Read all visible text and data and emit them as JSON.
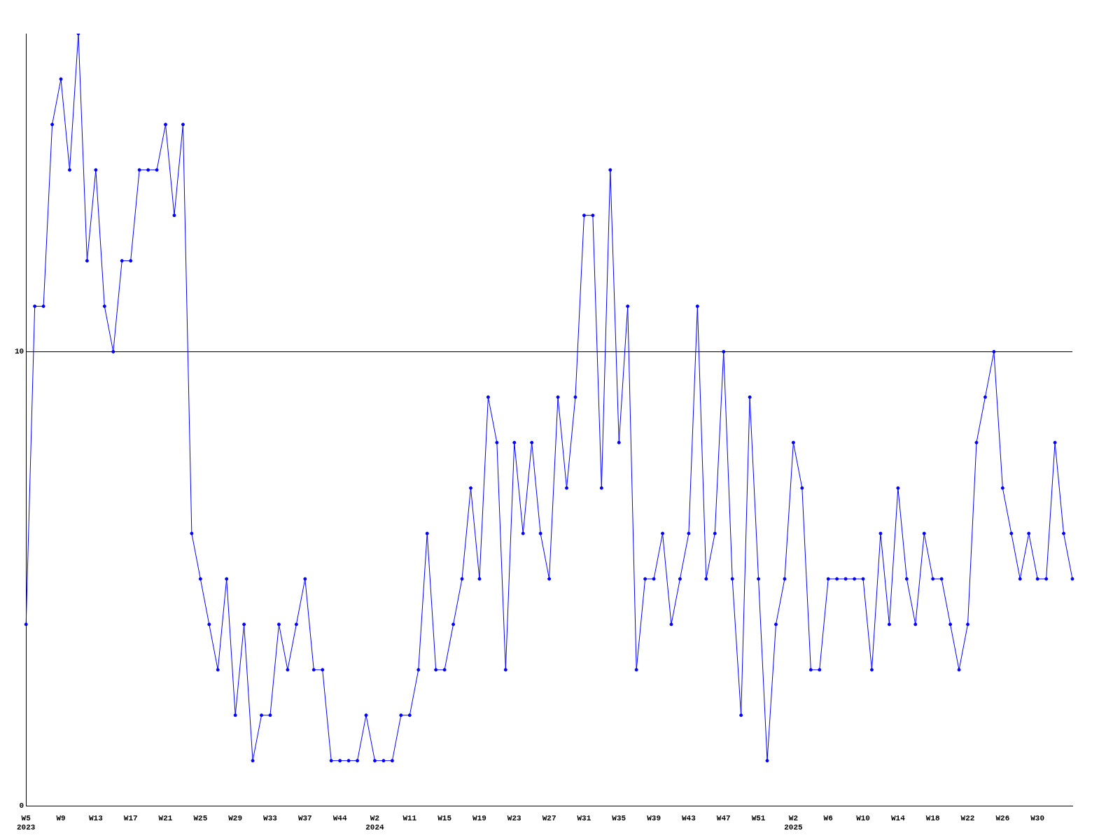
{
  "chart_data": {
    "type": "line",
    "categories": [
      "W5\n2023",
      null,
      null,
      null,
      "W9",
      null,
      null,
      null,
      "W13",
      null,
      null,
      null,
      "W17",
      null,
      null,
      null,
      "W21",
      null,
      null,
      null,
      "W25",
      null,
      null,
      null,
      "W29",
      null,
      null,
      null,
      "W33",
      null,
      null,
      null,
      "W37",
      null,
      null,
      null,
      "W44",
      null,
      null,
      null,
      "W2\n2024",
      null,
      null,
      null,
      "W11",
      null,
      null,
      null,
      "W15",
      null,
      null,
      null,
      "W19",
      null,
      null,
      null,
      "W23",
      null,
      null,
      null,
      "W27",
      null,
      null,
      null,
      "W31",
      null,
      null,
      null,
      "W35",
      null,
      null,
      null,
      "W39",
      null,
      null,
      null,
      "W43",
      null,
      null,
      null,
      "W47",
      null,
      null,
      null,
      "W51",
      null,
      null,
      null,
      "W2\n2025",
      null,
      null,
      null,
      "W6",
      null,
      null,
      null,
      "W10",
      null,
      null,
      null,
      "W14",
      null,
      null,
      null,
      "W18",
      null,
      null,
      null,
      "W22",
      null,
      null,
      null,
      "W26",
      null,
      null,
      null,
      "W30",
      null,
      null,
      null,
      null
    ],
    "series": [
      {
        "color": "#0000ff",
        "values": [
          4,
          11,
          11,
          15,
          16,
          14,
          17,
          12,
          14,
          11,
          10,
          12,
          12,
          14,
          14,
          14,
          15,
          13,
          15,
          6,
          5,
          4,
          3,
          5,
          2,
          4,
          1,
          2,
          2,
          4,
          3,
          4,
          5,
          3,
          3,
          1,
          1,
          1,
          1,
          2,
          1,
          1,
          1,
          2,
          2,
          3,
          6,
          3,
          3,
          4,
          5,
          7,
          5,
          9,
          8,
          3,
          8,
          6,
          8,
          6,
          5,
          9,
          7,
          9,
          13,
          13,
          7,
          14,
          8,
          11,
          3,
          5,
          5,
          6,
          4,
          5,
          6,
          11,
          5,
          6,
          10,
          5,
          2,
          9,
          5,
          1,
          4,
          5,
          8,
          7,
          3,
          3,
          5,
          5,
          5,
          5,
          5,
          3,
          6,
          4,
          7,
          5,
          4,
          6,
          5,
          5,
          4,
          3,
          4,
          8,
          9,
          10,
          7,
          6,
          5,
          6,
          5,
          5,
          8,
          6,
          5
        ]
      }
    ],
    "ylim": [
      0,
      17
    ],
    "yticks": [
      0,
      10
    ],
    "grid": "y",
    "marker": "circle",
    "line_style": "solid",
    "legend": false
  }
}
